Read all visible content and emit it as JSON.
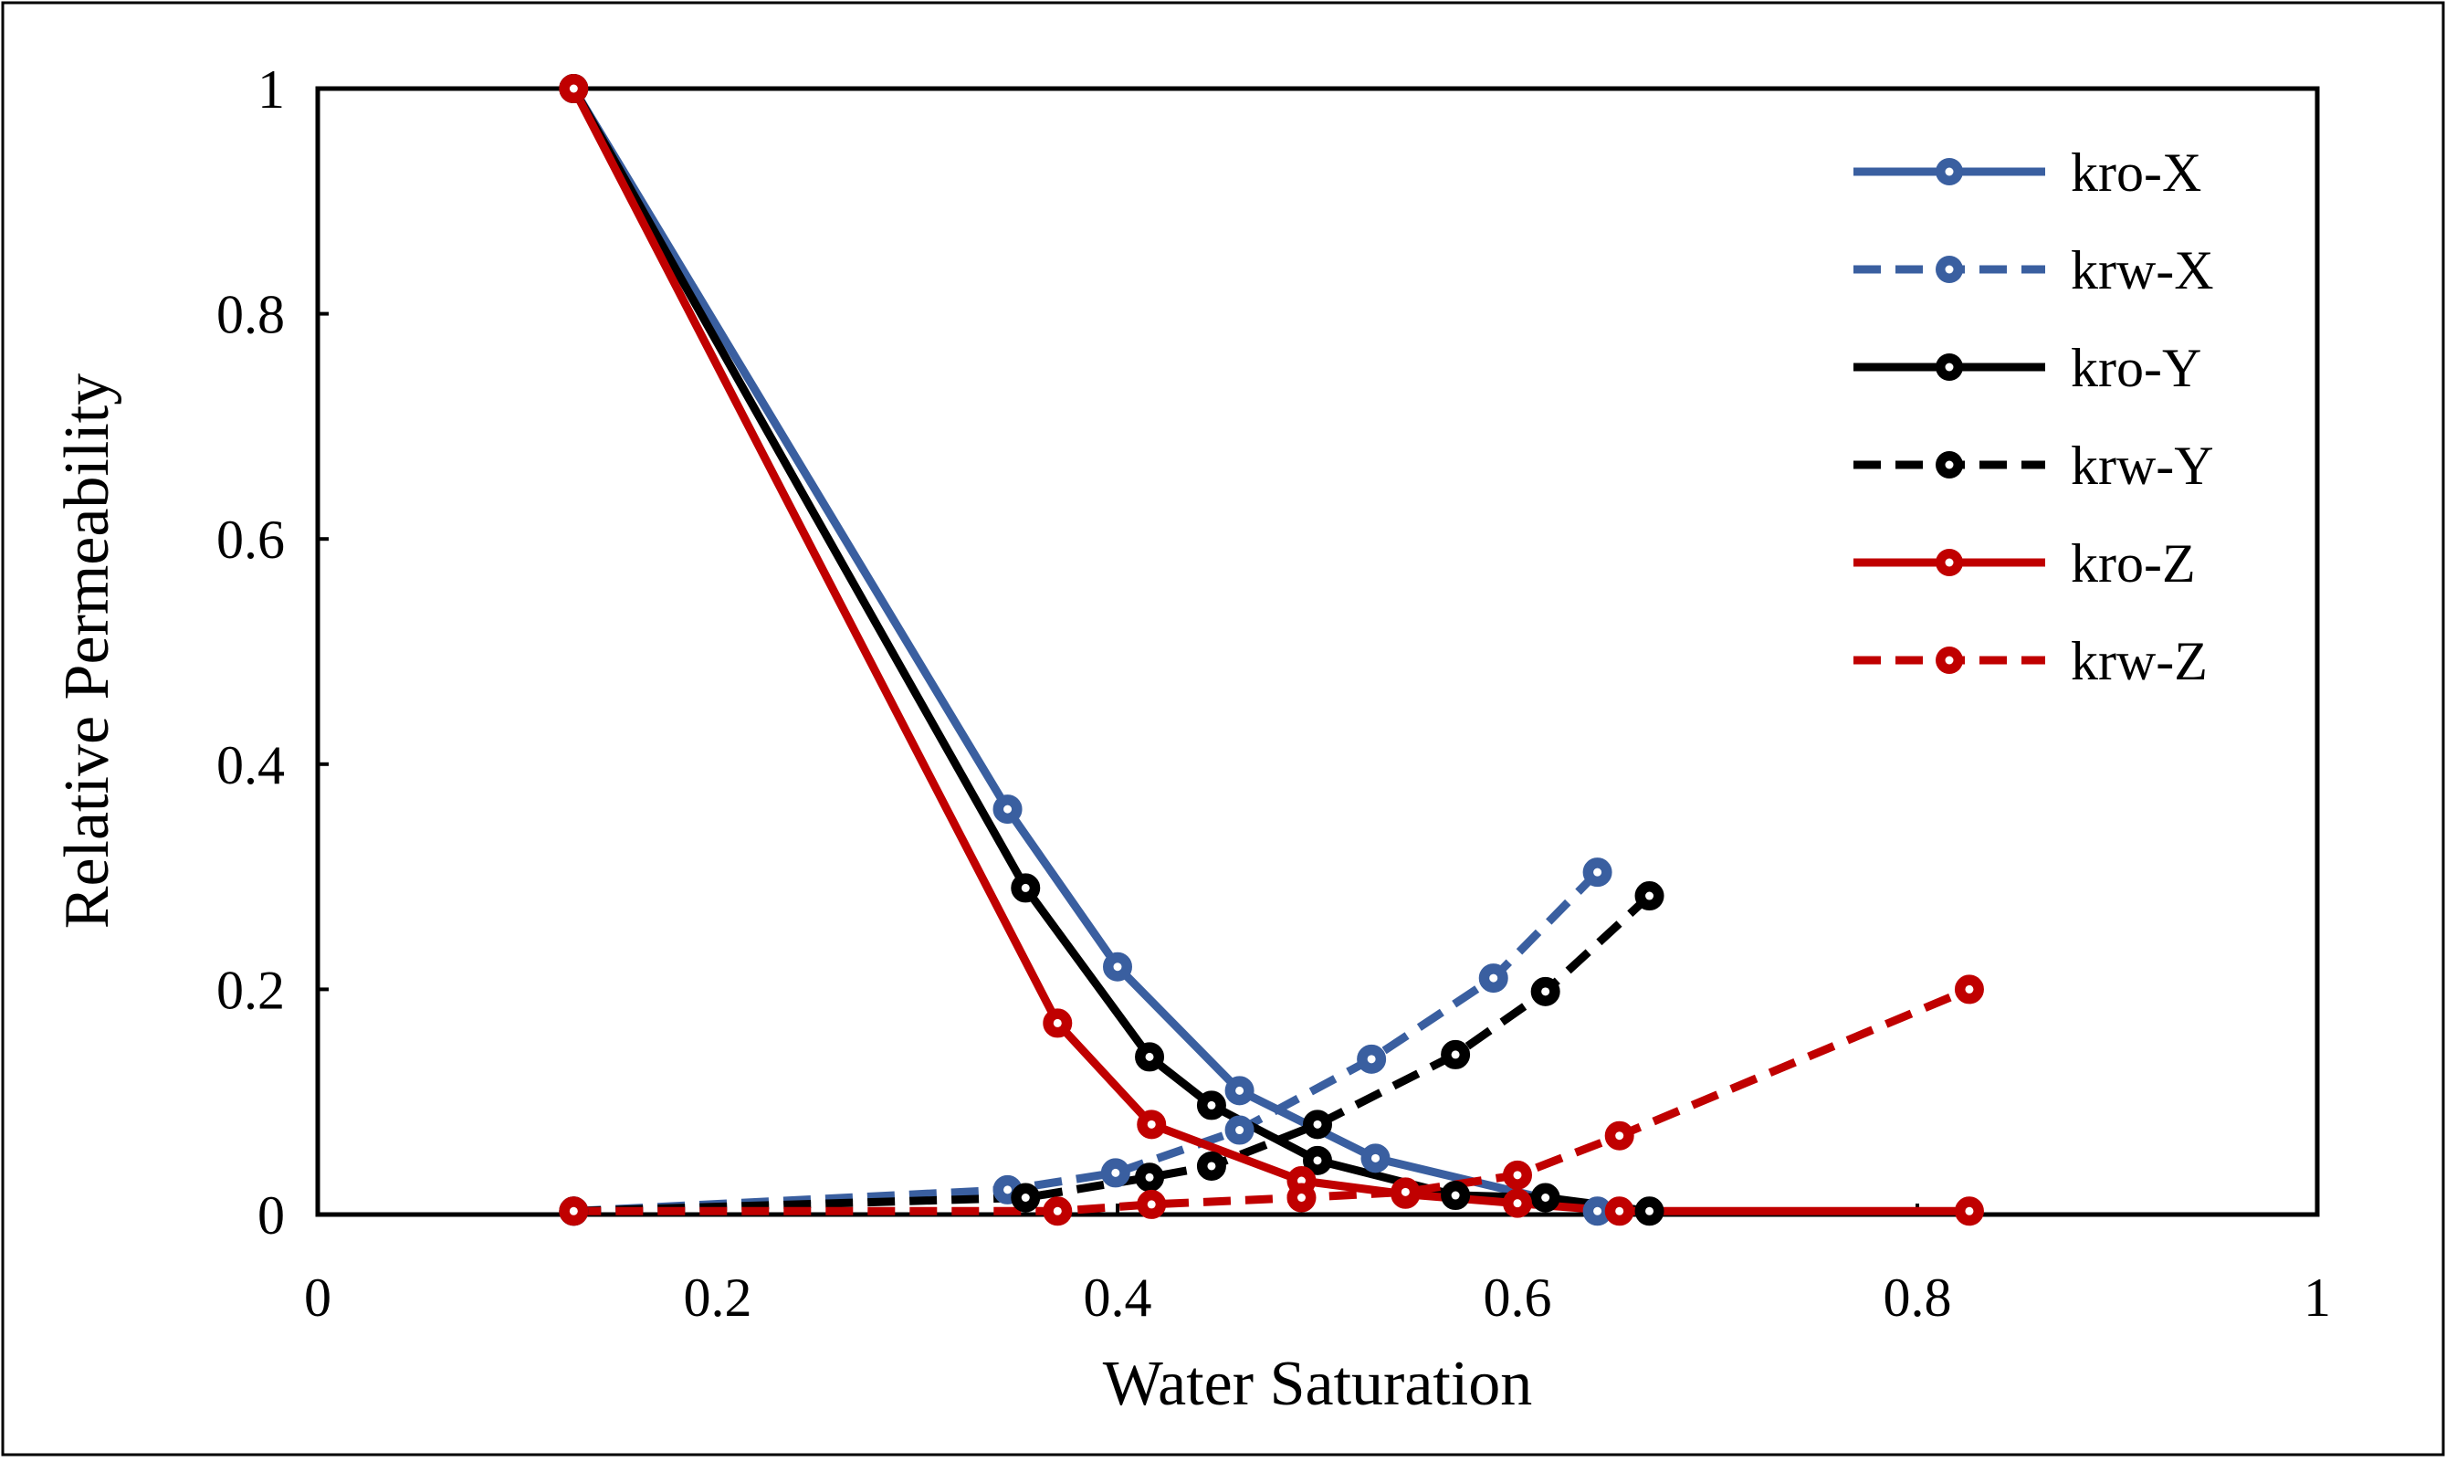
{
  "chart_data": {
    "type": "line",
    "title": "",
    "xlabel": "Water Saturation",
    "ylabel": "Relative Permeability",
    "xlim": [
      0,
      1
    ],
    "ylim": [
      0,
      1
    ],
    "x_ticks": [
      0,
      0.2,
      0.4,
      0.6,
      0.8,
      1
    ],
    "x_tick_labels": [
      "0",
      "0.2",
      "0.4",
      "0.6",
      "0.8",
      "1"
    ],
    "y_ticks": [
      0,
      0.2,
      0.4,
      0.6,
      0.8,
      1
    ],
    "y_tick_labels": [
      "0",
      "0.2",
      "0.4",
      "0.6",
      "0.8",
      "1"
    ],
    "grid": false,
    "legend_position": "top-right",
    "series": [
      {
        "name": "kro-X",
        "color": "#3a5fa0",
        "dashed": false,
        "x": [
          0.128,
          0.345,
          0.4,
          0.461,
          0.529,
          0.64
        ],
        "y": [
          1.0,
          0.36,
          0.22,
          0.11,
          0.05,
          0.003
        ]
      },
      {
        "name": "krw-X",
        "color": "#3a5fa0",
        "dashed": true,
        "x": [
          0.128,
          0.345,
          0.399,
          0.461,
          0.527,
          0.588,
          0.64
        ],
        "y": [
          0.003,
          0.022,
          0.037,
          0.075,
          0.138,
          0.21,
          0.304
        ]
      },
      {
        "name": "kro-Y",
        "color": "#000000",
        "dashed": false,
        "x": [
          0.128,
          0.354,
          0.416,
          0.447,
          0.5,
          0.569,
          0.614,
          0.666
        ],
        "y": [
          1.0,
          0.29,
          0.14,
          0.097,
          0.048,
          0.017,
          0.015,
          0.003
        ]
      },
      {
        "name": "krw-Y",
        "color": "#000000",
        "dashed": true,
        "x": [
          0.128,
          0.354,
          0.416,
          0.447,
          0.5,
          0.569,
          0.614,
          0.666
        ],
        "y": [
          0.003,
          0.015,
          0.033,
          0.043,
          0.08,
          0.142,
          0.198,
          0.283
        ]
      },
      {
        "name": "kro-Z",
        "color": "#c00000",
        "dashed": false,
        "x": [
          0.128,
          0.37,
          0.417,
          0.492,
          0.544,
          0.6,
          0.651,
          0.826
        ],
        "y": [
          1.0,
          0.17,
          0.08,
          0.03,
          0.018,
          0.01,
          0.003,
          0.003
        ]
      },
      {
        "name": "krw-Z",
        "color": "#c00000",
        "dashed": true,
        "x": [
          0.128,
          0.37,
          0.417,
          0.492,
          0.544,
          0.6,
          0.651,
          0.826
        ],
        "y": [
          0.003,
          0.003,
          0.009,
          0.015,
          0.02,
          0.035,
          0.07,
          0.2
        ]
      }
    ]
  }
}
